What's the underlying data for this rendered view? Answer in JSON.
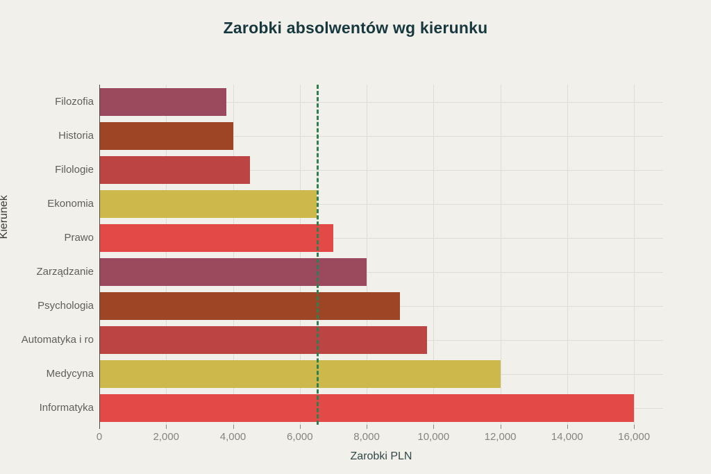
{
  "title": "Zarobki absolwentów wg kierunku",
  "colors": {
    "background": "#f1f0ea",
    "title_text": "#17383e",
    "grid": "#dedcd4",
    "axis_line": "#4a4a46",
    "category_text": "#5f5e58",
    "tick_text": "#85847e",
    "axis_title_text": "#31474a",
    "reference_line": "#2f7e50"
  },
  "chart_data": {
    "type": "bar",
    "orientation": "horizontal",
    "title": "Zarobki absolwentów wg kierunku",
    "xlabel": "Zarobki PLN",
    "ylabel": "Kierunek",
    "categories": [
      "Filozofia",
      "Historia",
      "Filologie",
      "Ekonomia",
      "Prawo",
      "Zarządzanie",
      "Psychologia",
      "Automatyka i ro",
      "Medycyna",
      "Informatyka"
    ],
    "values": [
      3800,
      4000,
      4500,
      6500,
      7000,
      8000,
      9000,
      9800,
      12000,
      16000
    ],
    "bar_colors": [
      "#9b4a5e",
      "#9e4526",
      "#bc4543",
      "#ccb84b",
      "#e24a47",
      "#9b4a5e",
      "#9e4526",
      "#bc4543",
      "#ccb84b",
      "#e24a47"
    ],
    "xlim": [
      0,
      16870
    ],
    "xticks": {
      "values": [
        0,
        2000,
        4000,
        6000,
        8000,
        10000,
        12000,
        14000,
        16000
      ],
      "labels": [
        "0",
        "2,000",
        "4,000",
        "6,000",
        "8,000",
        "10,000",
        "12,000",
        "14,000",
        "16,000"
      ]
    },
    "reference_line": {
      "value": 6500,
      "style": "dashed",
      "color": "#2f7e50"
    },
    "grid": true,
    "legend": "none"
  }
}
